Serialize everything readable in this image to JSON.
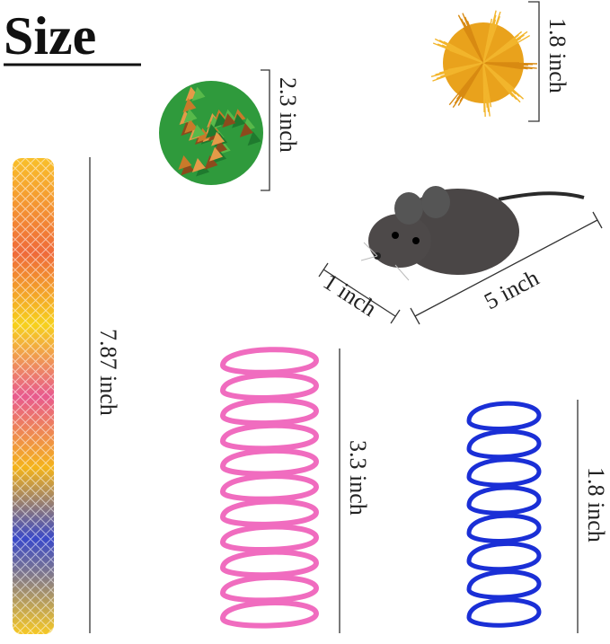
{
  "title": "Size",
  "items": [
    {
      "name": "pom-pom ball",
      "size": "1.8 inch",
      "color": "#e9a21c"
    },
    {
      "name": "crinkle ball",
      "size": "2.3 inch",
      "color": "#2f9a3c"
    },
    {
      "name": "mesh tube",
      "size": "7.87 inch",
      "color": "#f5b21b"
    },
    {
      "name": "mouse",
      "width": "1 inch",
      "length": "5 inch",
      "color": "#4a4646"
    },
    {
      "name": "pink spring",
      "size": "3.3 inch",
      "color": "#f06cbf"
    },
    {
      "name": "blue spring",
      "size": "1.8 inch",
      "color": "#1a2fd6"
    }
  ]
}
